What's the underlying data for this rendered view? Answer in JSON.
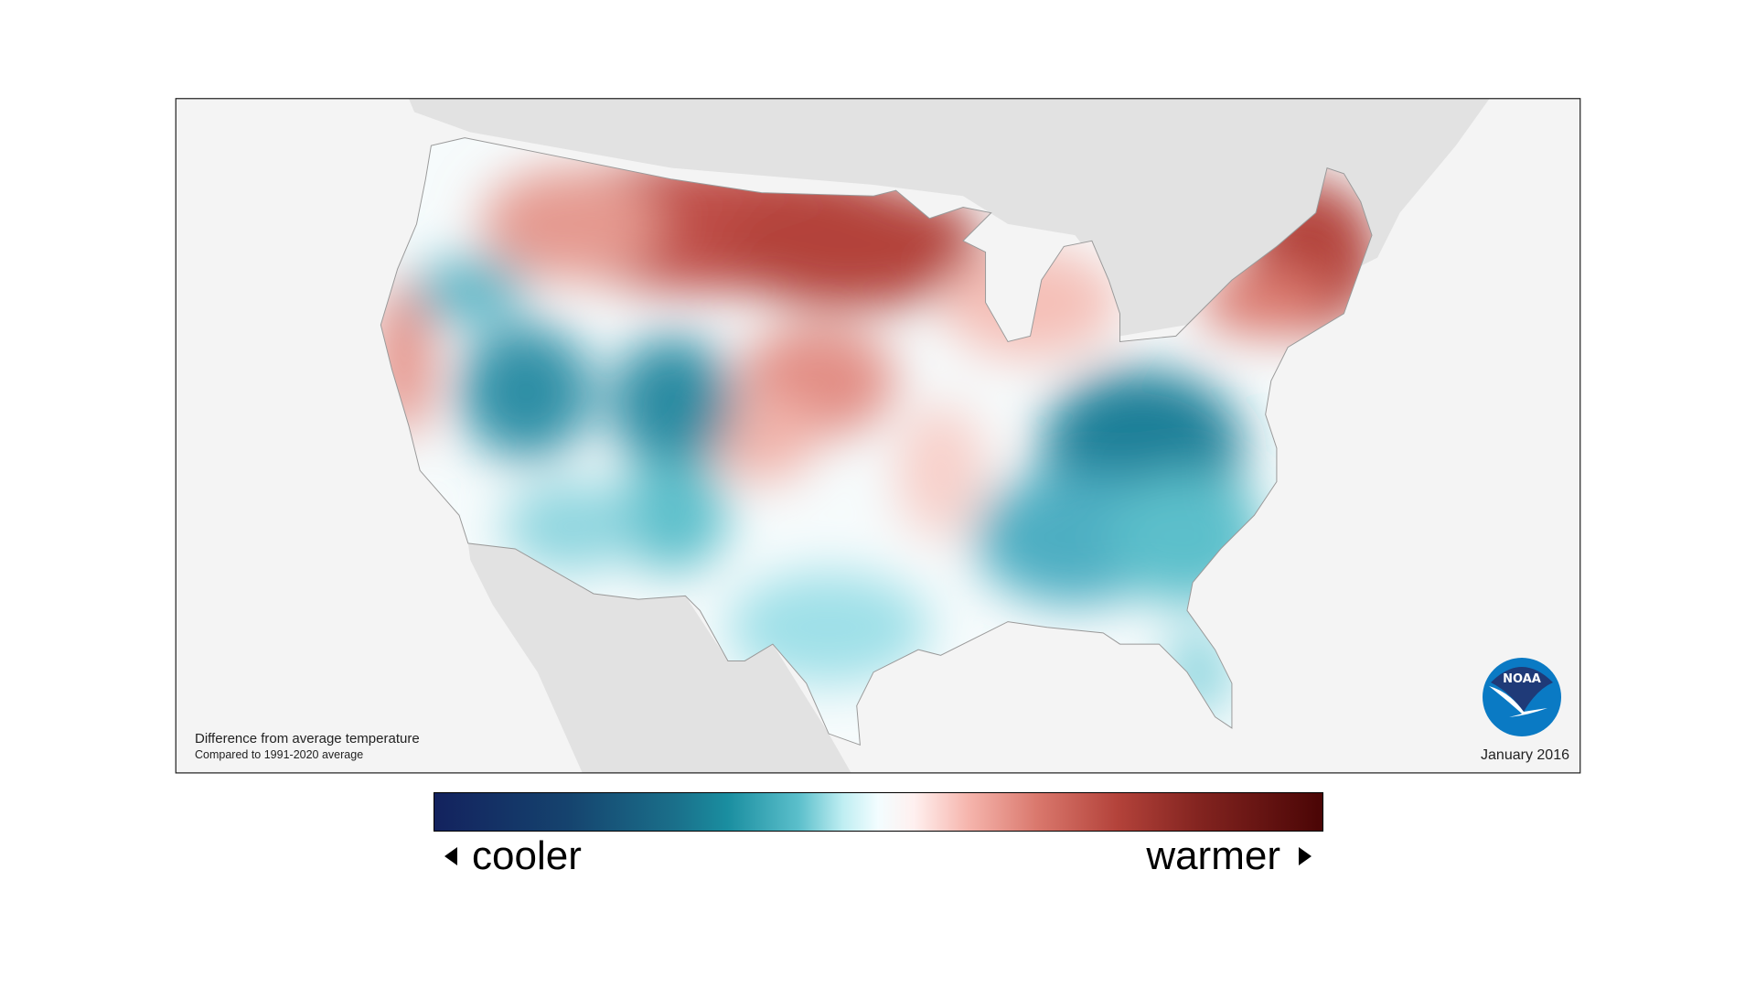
{
  "map": {
    "title": "Difference from average temperature",
    "subtitle": "Compared to 1991-2020 average",
    "date": "January 2016",
    "logo_text": "NOAA",
    "region": "Contiguous United States"
  },
  "legend": {
    "low_label": "cooler",
    "high_label": "warmer",
    "colors": [
      "#13225e",
      "#1a6f8a",
      "#5bbfcb",
      "#f3fdff",
      "#f6b6ae",
      "#b3423a",
      "#4a0505"
    ]
  },
  "colors": {
    "background": "#f4f4f4",
    "neighbor_land": "#e2e2e2",
    "noaa_dark": "#1f3a78",
    "noaa_light": "#0a7ac4"
  }
}
